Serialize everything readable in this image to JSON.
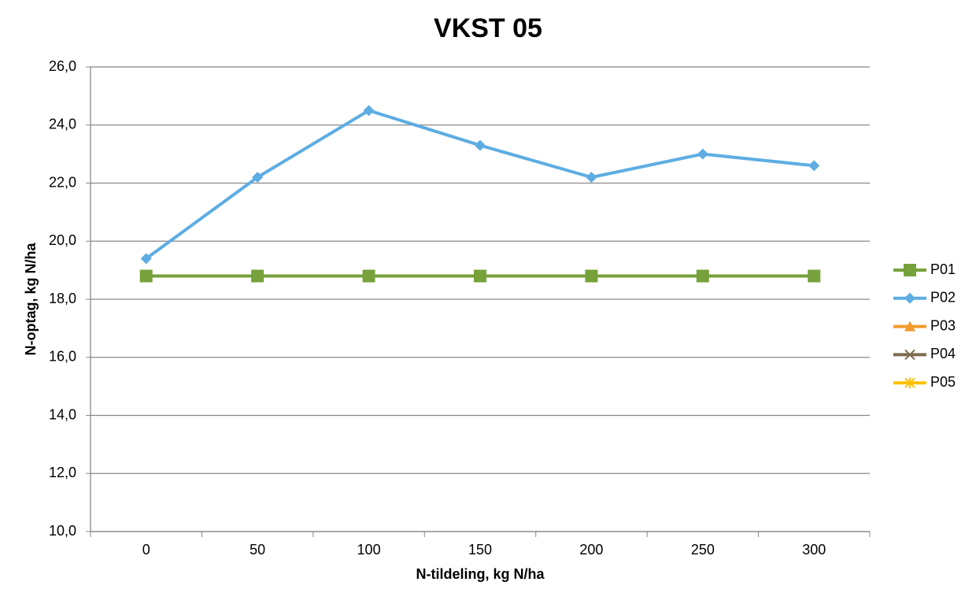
{
  "chart_data": {
    "type": "line",
    "title": "VKST 05",
    "x_label": "N-tildeling, kg N/ha",
    "y_label": "N-optag, kg N/ha",
    "categories": [
      "0",
      "50",
      "100",
      "150",
      "200",
      "250",
      "300"
    ],
    "ylim": [
      10,
      26
    ],
    "yticks": [
      {
        "value": 10,
        "label": "10,0"
      },
      {
        "value": 12,
        "label": "12,0"
      },
      {
        "value": 14,
        "label": "14,0"
      },
      {
        "value": 16,
        "label": "16,0"
      },
      {
        "value": 18,
        "label": "18,0"
      },
      {
        "value": 20,
        "label": "20,0"
      },
      {
        "value": 22,
        "label": "22,0"
      },
      {
        "value": 24,
        "label": "24,0"
      },
      {
        "value": 26,
        "label": "26,0"
      }
    ],
    "grid": true,
    "legend": "right",
    "series": [
      {
        "name": "P01",
        "color": "#77a13a",
        "marker": "square",
        "values": [
          18.8,
          18.8,
          18.8,
          18.8,
          18.8,
          18.8,
          18.8
        ]
      },
      {
        "name": "P02",
        "color": "#5dade2",
        "marker": "diamond",
        "values": [
          19.4,
          22.2,
          24.5,
          23.3,
          22.2,
          23.0,
          22.6
        ]
      },
      {
        "name": "P03",
        "color": "#f39a2c",
        "marker": "triangle",
        "values": [
          null,
          null,
          null,
          null,
          null,
          null,
          null
        ]
      },
      {
        "name": "P04",
        "color": "#7d6a4f",
        "marker": "x",
        "values": [
          null,
          null,
          null,
          null,
          null,
          null,
          null
        ]
      },
      {
        "name": "P05",
        "color": "#ffc000",
        "marker": "star",
        "values": [
          null,
          null,
          null,
          null,
          null,
          null,
          null
        ]
      }
    ]
  }
}
